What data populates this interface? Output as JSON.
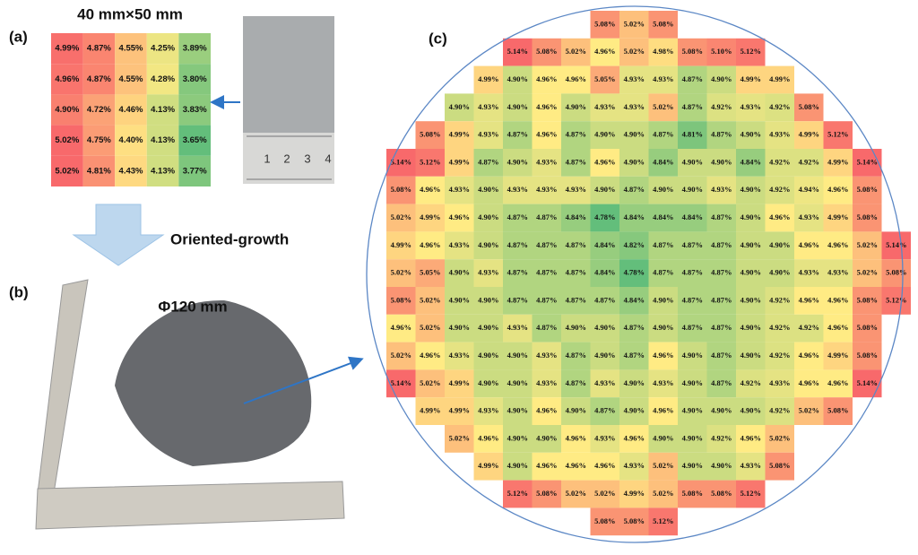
{
  "panel_a": {
    "label": "(a)",
    "title": "40 mm×50 mm",
    "rows": [
      [
        "4.99%",
        "4.87%",
        "4.55%",
        "4.25%",
        "3.89%"
      ],
      [
        "4.96%",
        "4.87%",
        "4.55%",
        "4.28%",
        "3.80%"
      ],
      [
        "4.90%",
        "4.72%",
        "4.46%",
        "4.13%",
        "3.83%"
      ],
      [
        "5.02%",
        "4.75%",
        "4.40%",
        "4.13%",
        "3.65%"
      ],
      [
        "5.02%",
        "4.81%",
        "4.43%",
        "4.13%",
        "3.77%"
      ]
    ]
  },
  "arrow_label": "Oriented-growth",
  "panel_b": {
    "label": "(b)",
    "title": "Φ120 mm"
  },
  "panel_c": {
    "label": "(c)",
    "rows": [
      [
        null,
        null,
        null,
        null,
        null,
        null,
        null,
        "5.08%",
        "5.02%",
        "5.08%",
        null,
        null,
        null,
        null,
        null,
        null,
        null,
        null
      ],
      [
        null,
        null,
        null,
        null,
        "5.14%",
        "5.08%",
        "5.02%",
        "4.96%",
        "5.02%",
        "4.98%",
        "5.08%",
        "5.10%",
        "5.12%",
        null,
        null,
        null,
        null,
        null
      ],
      [
        null,
        null,
        null,
        "4.99%",
        "4.90%",
        "4.96%",
        "4.96%",
        "5.05%",
        "4.93%",
        "4.93%",
        "4.87%",
        "4.90%",
        "4.99%",
        "4.99%",
        null,
        null,
        null,
        null
      ],
      [
        null,
        null,
        "4.90%",
        "4.93%",
        "4.90%",
        "4.96%",
        "4.90%",
        "4.93%",
        "4.93%",
        "5.02%",
        "4.87%",
        "4.92%",
        "4.93%",
        "4.92%",
        "5.08%",
        null,
        null,
        null
      ],
      [
        null,
        "5.08%",
        "4.99%",
        "4.93%",
        "4.87%",
        "4.96%",
        "4.87%",
        "4.90%",
        "4.90%",
        "4.87%",
        "4.81%",
        "4.87%",
        "4.90%",
        "4.93%",
        "4.99%",
        "5.12%",
        null,
        null
      ],
      [
        "5.14%",
        "5.12%",
        "4.99%",
        "4.87%",
        "4.90%",
        "4.93%",
        "4.87%",
        "4.96%",
        "4.90%",
        "4.84%",
        "4.90%",
        "4.90%",
        "4.84%",
        "4.92%",
        "4.92%",
        "4.99%",
        "5.14%",
        null
      ],
      [
        "5.08%",
        "4.96%",
        "4.93%",
        "4.90%",
        "4.93%",
        "4.93%",
        "4.93%",
        "4.90%",
        "4.87%",
        "4.90%",
        "4.90%",
        "4.93%",
        "4.90%",
        "4.92%",
        "4.94%",
        "4.96%",
        "5.08%",
        null
      ],
      [
        "5.02%",
        "4.99%",
        "4.96%",
        "4.90%",
        "4.87%",
        "4.87%",
        "4.84%",
        "4.78%",
        "4.84%",
        "4.84%",
        "4.84%",
        "4.87%",
        "4.90%",
        "4.96%",
        "4.93%",
        "4.99%",
        "5.08%",
        null
      ],
      [
        "4.99%",
        "4.96%",
        "4.93%",
        "4.90%",
        "4.87%",
        "4.87%",
        "4.87%",
        "4.84%",
        "4.82%",
        "4.87%",
        "4.87%",
        "4.87%",
        "4.90%",
        "4.90%",
        "4.96%",
        "4.96%",
        "5.02%",
        "5.14%"
      ],
      [
        "5.02%",
        "5.05%",
        "4.90%",
        "4.93%",
        "4.87%",
        "4.87%",
        "4.87%",
        "4.84%",
        "4.78%",
        "4.87%",
        "4.87%",
        "4.87%",
        "4.90%",
        "4.90%",
        "4.93%",
        "4.93%",
        "5.02%",
        "5.08%"
      ],
      [
        "5.08%",
        "5.02%",
        "4.90%",
        "4.90%",
        "4.87%",
        "4.87%",
        "4.87%",
        "4.87%",
        "4.84%",
        "4.90%",
        "4.87%",
        "4.87%",
        "4.90%",
        "4.92%",
        "4.96%",
        "4.96%",
        "5.08%",
        "5.12%"
      ],
      [
        "4.96%",
        "5.02%",
        "4.90%",
        "4.90%",
        "4.93%",
        "4.87%",
        "4.90%",
        "4.90%",
        "4.87%",
        "4.90%",
        "4.87%",
        "4.87%",
        "4.90%",
        "4.92%",
        "4.92%",
        "4.96%",
        "5.08%",
        null
      ],
      [
        "5.02%",
        "4.96%",
        "4.93%",
        "4.90%",
        "4.90%",
        "4.93%",
        "4.87%",
        "4.90%",
        "4.87%",
        "4.96%",
        "4.90%",
        "4.87%",
        "4.90%",
        "4.92%",
        "4.96%",
        "4.99%",
        "5.08%",
        null
      ],
      [
        "5.14%",
        "5.02%",
        "4.99%",
        "4.90%",
        "4.90%",
        "4.93%",
        "4.87%",
        "4.93%",
        "4.90%",
        "4.93%",
        "4.90%",
        "4.87%",
        "4.92%",
        "4.93%",
        "4.96%",
        "4.96%",
        "5.14%",
        null
      ],
      [
        null,
        "4.99%",
        "4.99%",
        "4.93%",
        "4.90%",
        "4.96%",
        "4.90%",
        "4.87%",
        "4.90%",
        "4.96%",
        "4.90%",
        "4.90%",
        "4.90%",
        "4.92%",
        "5.02%",
        "5.08%",
        null,
        null
      ],
      [
        null,
        null,
        "5.02%",
        "4.96%",
        "4.90%",
        "4.90%",
        "4.96%",
        "4.93%",
        "4.96%",
        "4.90%",
        "4.90%",
        "4.92%",
        "4.96%",
        "5.02%",
        null,
        null,
        null,
        null
      ],
      [
        null,
        null,
        null,
        "4.99%",
        "4.90%",
        "4.96%",
        "4.96%",
        "4.96%",
        "4.93%",
        "5.02%",
        "4.90%",
        "4.90%",
        "4.93%",
        "5.08%",
        null,
        null,
        null,
        null
      ],
      [
        null,
        null,
        null,
        null,
        "5.12%",
        "5.08%",
        "5.02%",
        "5.02%",
        "4.99%",
        "5.02%",
        "5.08%",
        "5.08%",
        "5.12%",
        null,
        null,
        null,
        null,
        null
      ],
      [
        null,
        null,
        null,
        null,
        null,
        null,
        null,
        "5.08%",
        "5.08%",
        "5.12%",
        null,
        null,
        null,
        null,
        null,
        null,
        null,
        null
      ]
    ]
  }
}
